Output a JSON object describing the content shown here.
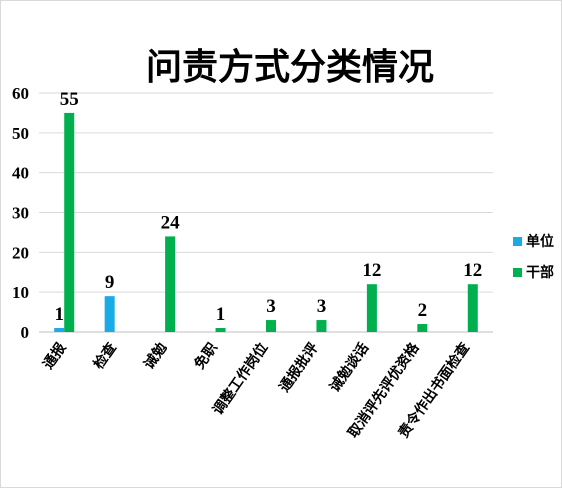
{
  "chart_data": {
    "type": "bar",
    "title": "问责方式分类情况",
    "categories": [
      "通报",
      "检查",
      "诫勉",
      "免职",
      "调整工作岗位",
      "通报批评",
      "诫勉谈话",
      "取消评先评优资格",
      "责令作出书面检查"
    ],
    "series": [
      {
        "name": "单位",
        "color": "#1aabe6",
        "values": [
          1,
          9,
          0,
          0,
          0,
          0,
          0,
          0,
          0
        ]
      },
      {
        "name": "干部",
        "color": "#00b04f",
        "values": [
          55,
          0,
          24,
          1,
          3,
          3,
          12,
          2,
          12
        ]
      }
    ],
    "data_labels": [
      {
        "series": 0,
        "index": 0,
        "text": "1"
      },
      {
        "series": 1,
        "index": 0,
        "text": "55"
      },
      {
        "series": 0,
        "index": 1,
        "text": "9"
      },
      {
        "series": 1,
        "index": 2,
        "text": "24"
      },
      {
        "series": 1,
        "index": 3,
        "text": "1"
      },
      {
        "series": 1,
        "index": 4,
        "text": "3"
      },
      {
        "series": 1,
        "index": 5,
        "text": "3"
      },
      {
        "series": 1,
        "index": 6,
        "text": "12"
      },
      {
        "series": 1,
        "index": 7,
        "text": "2"
      },
      {
        "series": 1,
        "index": 8,
        "text": "12"
      }
    ],
    "yticks": [
      "0",
      "10",
      "20",
      "30",
      "40",
      "50",
      "60"
    ],
    "ylim": [
      0,
      60
    ],
    "grid": true,
    "legend_position": "right",
    "gridline_color": "#d9d9d9",
    "axis_color": "#bfbfbf"
  }
}
